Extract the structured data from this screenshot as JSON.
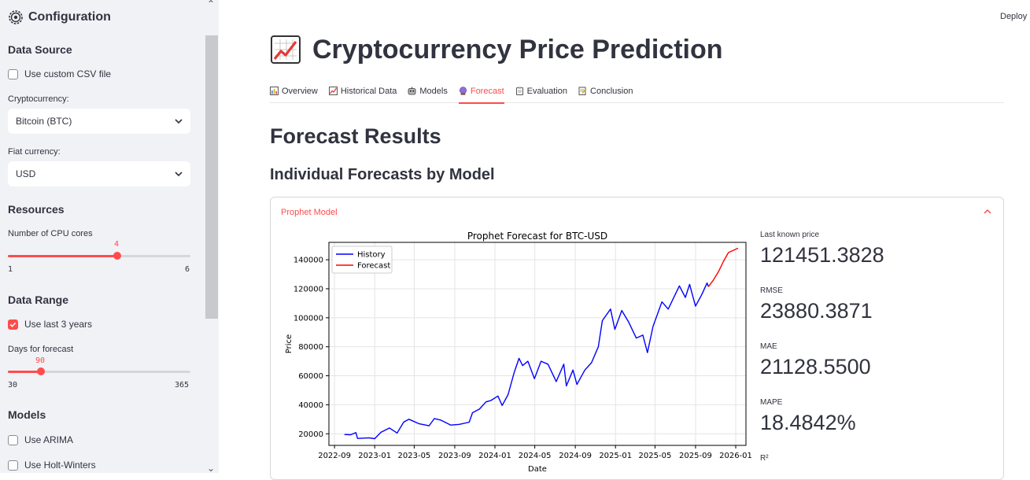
{
  "sidebar": {
    "title": "Configuration",
    "data_source": {
      "heading": "Data Source",
      "custom_csv_label": "Use custom CSV file",
      "custom_csv_checked": false,
      "crypto_label": "Cryptocurrency:",
      "crypto_value": "Bitcoin (BTC)",
      "fiat_label": "Fiat currency:",
      "fiat_value": "USD"
    },
    "resources": {
      "heading": "Resources",
      "cpu_label": "Number of CPU cores",
      "cpu_value": "4",
      "cpu_min": "1",
      "cpu_max": "6"
    },
    "data_range": {
      "heading": "Data Range",
      "last3_label": "Use last 3 years",
      "last3_checked": true,
      "forecast_label": "Days for forecast",
      "forecast_value": "90",
      "forecast_min": "30",
      "forecast_max": "365"
    },
    "models": {
      "heading": "Models",
      "arima_label": "Use ARIMA",
      "arima_checked": false,
      "holt_label": "Use Holt-Winters",
      "holt_checked": false
    }
  },
  "header": {
    "deploy_label": "Deploy"
  },
  "main": {
    "title": "Cryptocurrency Price Prediction",
    "tabs": [
      {
        "label": "Overview",
        "icon": "bar-chart-icon"
      },
      {
        "label": "Historical Data",
        "icon": "chart-increasing-icon"
      },
      {
        "label": "Models",
        "icon": "robot-icon"
      },
      {
        "label": "Forecast",
        "icon": "crystal-ball-icon",
        "active": true
      },
      {
        "label": "Evaluation",
        "icon": "clipboard-icon"
      },
      {
        "label": "Conclusion",
        "icon": "memo-icon"
      }
    ],
    "section_title": "Forecast Results",
    "subsection_title": "Individual Forecasts by Model",
    "expander_title": "Prophet Model",
    "metrics": [
      {
        "label": "Last known price",
        "value": "121451.3828"
      },
      {
        "label": "RMSE",
        "value": "23880.3871"
      },
      {
        "label": "MAE",
        "value": "21128.5500"
      },
      {
        "label": "MAPE",
        "value": "18.4842%"
      },
      {
        "label": "R²",
        "value": ""
      }
    ]
  },
  "colors": {
    "accent": "#FF4B4B",
    "history": "#0000FF",
    "forecast": "#FF0000"
  },
  "chart_data": {
    "type": "line",
    "title": "Prophet Forecast for BTC-USD",
    "xlabel": "Date",
    "ylabel": "Price",
    "x_ticks": [
      "2022-09",
      "2023-01",
      "2023-05",
      "2023-09",
      "2024-01",
      "2024-05",
      "2024-09",
      "2025-01",
      "2025-05",
      "2025-09",
      "2026-01"
    ],
    "y_ticks": [
      20000,
      40000,
      60000,
      80000,
      100000,
      120000,
      140000
    ],
    "ylim": [
      12000,
      152000
    ],
    "grid": true,
    "legend_position": "upper-left",
    "series": [
      {
        "name": "History",
        "color": "#0000FF",
        "points": [
          [
            "2022-10-01",
            19500
          ],
          [
            "2022-10-20",
            19300
          ],
          [
            "2022-11-05",
            20800
          ],
          [
            "2022-11-10",
            16800
          ],
          [
            "2022-12-15",
            17200
          ],
          [
            "2023-01-01",
            16600
          ],
          [
            "2023-01-20",
            21000
          ],
          [
            "2023-02-15",
            24000
          ],
          [
            "2023-03-10",
            20500
          ],
          [
            "2023-03-30",
            28000
          ],
          [
            "2023-04-15",
            30000
          ],
          [
            "2023-05-15",
            27000
          ],
          [
            "2023-06-15",
            25500
          ],
          [
            "2023-07-01",
            30500
          ],
          [
            "2023-07-20",
            29500
          ],
          [
            "2023-08-20",
            26000
          ],
          [
            "2023-09-15",
            26500
          ],
          [
            "2023-10-15",
            28000
          ],
          [
            "2023-10-25",
            34500
          ],
          [
            "2023-11-15",
            37000
          ],
          [
            "2023-12-05",
            42000
          ],
          [
            "2023-12-20",
            43000
          ],
          [
            "2024-01-10",
            46000
          ],
          [
            "2024-01-23",
            39500
          ],
          [
            "2024-02-10",
            47000
          ],
          [
            "2024-02-28",
            62000
          ],
          [
            "2024-03-14",
            72000
          ],
          [
            "2024-03-25",
            67000
          ],
          [
            "2024-04-10",
            70000
          ],
          [
            "2024-04-30",
            58000
          ],
          [
            "2024-05-20",
            70000
          ],
          [
            "2024-06-10",
            68000
          ],
          [
            "2024-07-05",
            56000
          ],
          [
            "2024-07-28",
            68000
          ],
          [
            "2024-08-05",
            53000
          ],
          [
            "2024-08-25",
            64000
          ],
          [
            "2024-09-06",
            54000
          ],
          [
            "2024-09-30",
            64000
          ],
          [
            "2024-10-20",
            69000
          ],
          [
            "2024-11-10",
            80000
          ],
          [
            "2024-11-22",
            98000
          ],
          [
            "2024-12-17",
            106000
          ],
          [
            "2024-12-30",
            92000
          ],
          [
            "2025-01-20",
            105000
          ],
          [
            "2025-02-10",
            97000
          ],
          [
            "2025-03-05",
            86000
          ],
          [
            "2025-03-25",
            88000
          ],
          [
            "2025-04-08",
            76000
          ],
          [
            "2025-04-25",
            94000
          ],
          [
            "2025-05-22",
            111000
          ],
          [
            "2025-06-10",
            106000
          ],
          [
            "2025-07-14",
            122000
          ],
          [
            "2025-08-01",
            114000
          ],
          [
            "2025-08-14",
            123000
          ],
          [
            "2025-09-01",
            108000
          ],
          [
            "2025-09-20",
            116000
          ],
          [
            "2025-10-06",
            124000
          ],
          [
            "2025-10-10",
            121451
          ]
        ]
      },
      {
        "name": "Forecast",
        "color": "#FF0000",
        "points": [
          [
            "2025-10-10",
            121451
          ],
          [
            "2025-10-25",
            126000
          ],
          [
            "2025-11-10",
            132000
          ],
          [
            "2025-11-25",
            139000
          ],
          [
            "2025-12-10",
            145000
          ],
          [
            "2025-12-25",
            146500
          ],
          [
            "2026-01-08",
            148000
          ]
        ]
      }
    ]
  }
}
